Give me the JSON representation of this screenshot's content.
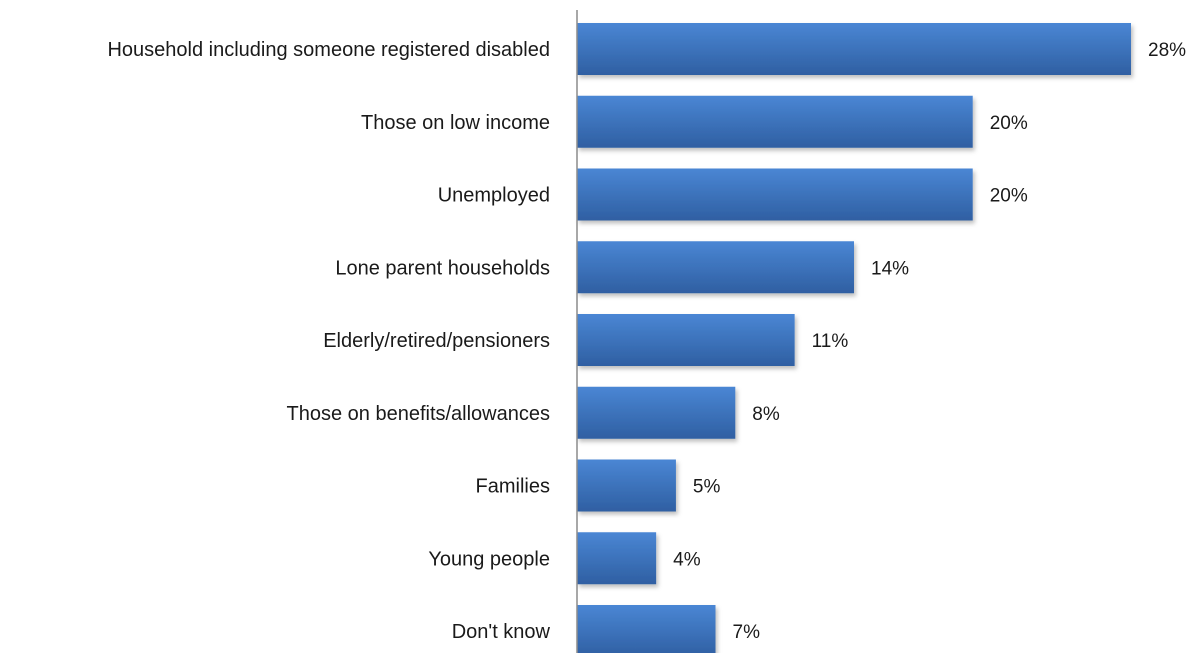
{
  "chart_data": {
    "type": "bar",
    "orientation": "horizontal",
    "categories": [
      "Household including someone registered disabled",
      "Those on low income",
      "Unemployed",
      "Lone parent households",
      "Elderly/retired/pensioners",
      "Those on benefits/allowances",
      "Families",
      "Young people",
      "Don't know"
    ],
    "values": [
      28,
      20,
      20,
      14,
      11,
      8,
      5,
      4,
      7
    ],
    "value_labels": [
      "28%",
      "20%",
      "20%",
      "14%",
      "11%",
      "8%",
      "5%",
      "4%",
      "7%"
    ],
    "title": "",
    "xlabel": "",
    "ylabel": "",
    "xlim": [
      0,
      28
    ],
    "grid": false,
    "legend": "none",
    "colors": {
      "bar_top": "#4a86d4",
      "bar_bottom": "#2f5fa2",
      "axis": "#8c8c8c",
      "text": "#1a1a1a"
    }
  }
}
